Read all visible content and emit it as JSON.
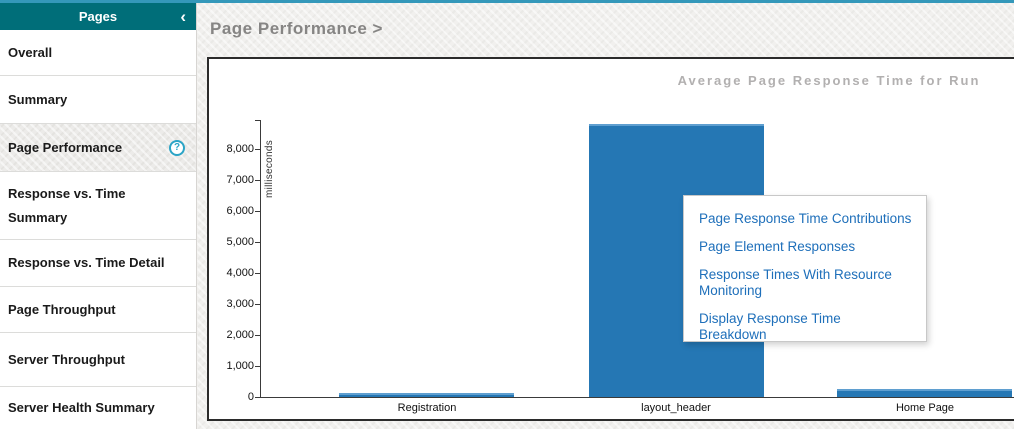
{
  "accent": {
    "top_strip_color": "#3498ba",
    "sidebar_header_color": "#006e79"
  },
  "sidebar": {
    "title": "Pages",
    "collapse_icon": "‹",
    "help_glyph": "?",
    "items": [
      {
        "label": "Overall",
        "selected": false
      },
      {
        "label": "Summary",
        "selected": false
      },
      {
        "label": "Page Performance",
        "selected": true,
        "has_help": true
      },
      {
        "label": "Response vs. Time Summary",
        "selected": false
      },
      {
        "label": "Response vs. Time Detail",
        "selected": false
      },
      {
        "label": "Page Throughput",
        "selected": false
      },
      {
        "label": "Server Throughput",
        "selected": false
      },
      {
        "label": "Server Health Summary",
        "selected": false
      }
    ]
  },
  "main": {
    "breadcrumb": "Page Performance >"
  },
  "popup": {
    "link_color": "#1e6fba",
    "items": [
      "Page Response Time Contributions",
      "Page Element Responses",
      "Response Times With Resource Monitoring",
      "Display Response Time Breakdown"
    ]
  },
  "chart_data": {
    "type": "bar",
    "title": "Average Page Response Time for Run",
    "xlabel": "",
    "ylabel": "milliseconds",
    "categories": [
      "Registration",
      "layout_header",
      "Home Page"
    ],
    "values": [
      130,
      8800,
      260
    ],
    "ylim": [
      0,
      8900
    ],
    "ytick_values": [
      0,
      1000,
      2000,
      3000,
      4000,
      5000,
      6000,
      7000,
      8000
    ],
    "ytick_labels": [
      "0",
      "1,000",
      "2,000",
      "3,000",
      "4,000",
      "5,000",
      "6,000",
      "7,000",
      "8,000"
    ],
    "bar_color": "#2577b4",
    "grid": false,
    "legend_position": "none"
  }
}
